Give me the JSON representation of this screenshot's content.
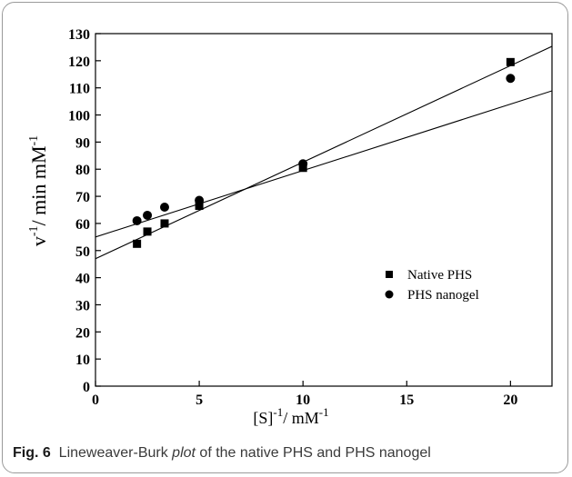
{
  "caption": {
    "label": "Fig. 6",
    "text_before": "Lineweaver-Burk ",
    "text_italic": "plot",
    "text_after": " of the native PHS and PHS nanogel"
  },
  "chart_data": {
    "type": "scatter",
    "xlabel": "[S]",
    "xlabel_sup1": "-1",
    "xlabel_unit": "/ mM",
    "xlabel_sup2": "-1",
    "ylabel": "v",
    "ylabel_sup1": "-1",
    "ylabel_unit": "/ min mM",
    "ylabel_sup2": "-1",
    "xlim": [
      0,
      22
    ],
    "ylim": [
      0,
      130
    ],
    "xticks": [
      0,
      5,
      10,
      15,
      20
    ],
    "yticks": [
      0,
      10,
      20,
      30,
      40,
      50,
      60,
      70,
      80,
      90,
      100,
      110,
      120,
      130
    ],
    "legend_position": "right",
    "series": [
      {
        "name": "Native PHS",
        "marker": "square",
        "color": "#000000",
        "x": [
          2,
          2.5,
          3.33,
          5,
          10,
          20
        ],
        "y": [
          52.5,
          57,
          60,
          66.5,
          80.5,
          119.5
        ],
        "fit": {
          "intercept": 47,
          "slope": 3.56
        }
      },
      {
        "name": "PHS nanogel",
        "marker": "circle",
        "color": "#000000",
        "x": [
          2,
          2.5,
          3.33,
          5,
          10,
          20
        ],
        "y": [
          61,
          63,
          66,
          68.5,
          82,
          113.5
        ],
        "fit": {
          "intercept": 55,
          "slope": 2.45
        }
      }
    ]
  }
}
